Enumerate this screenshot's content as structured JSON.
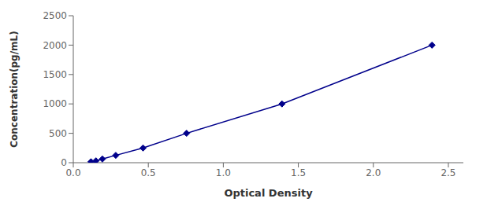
{
  "chart_data": {
    "type": "line",
    "xlabel": "Optical Density",
    "ylabel": "Concentration(pg/mL)",
    "x": [
      0.118,
      0.151,
      0.194,
      0.283,
      0.465,
      0.755,
      1.391,
      2.391
    ],
    "values": [
      15.6,
      31.25,
      62.5,
      125,
      250,
      500,
      1000,
      2000
    ],
    "color": "#00008B",
    "marker": "diamond",
    "line_style": "solid",
    "xlim": [
      0,
      2.6
    ],
    "ylim": [
      0,
      2500
    ],
    "xticks": [
      {
        "value": 0,
        "label": "0.0"
      },
      {
        "value": 0.5,
        "label": "0.5"
      },
      {
        "value": 1,
        "label": "1.0"
      },
      {
        "value": 1.5,
        "label": "1.5"
      },
      {
        "value": 2,
        "label": "2.0"
      },
      {
        "value": 2.5,
        "label": "2.5"
      }
    ],
    "yticks": [
      0,
      500,
      1000,
      1500,
      2000,
      2500
    ],
    "grid": false
  }
}
